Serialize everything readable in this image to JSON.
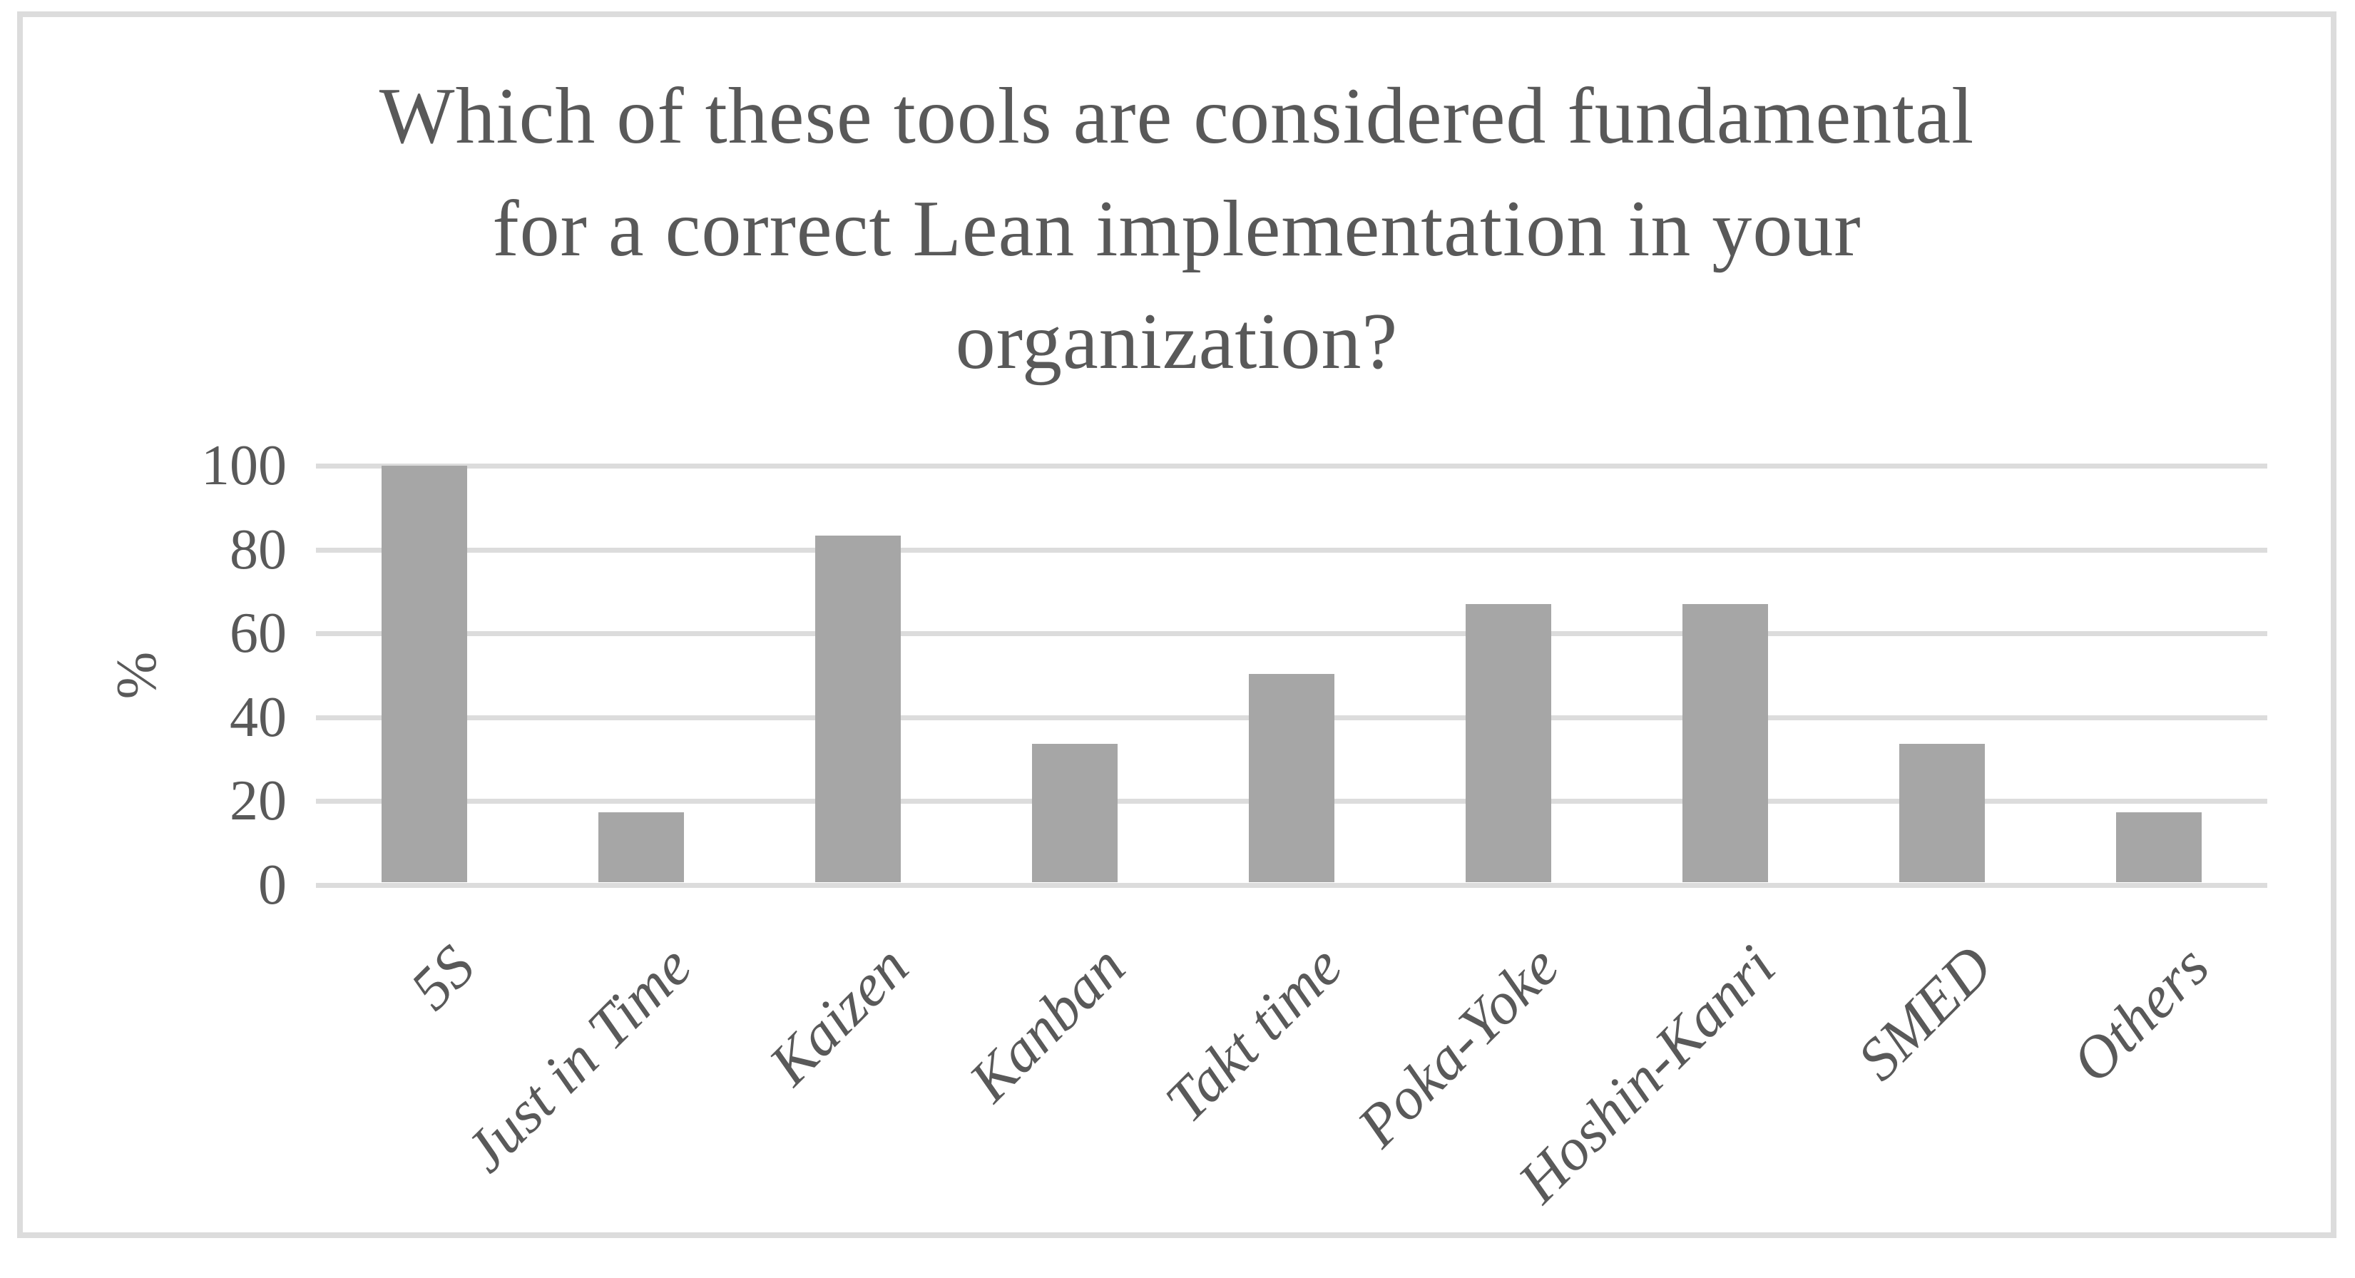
{
  "chart_data": {
    "type": "bar",
    "title": "Which of these tools are considered fundamental for a correct Lean implementation in your organization?",
    "title_lines": [
      "Which of these tools are considered fundamental",
      "for a correct Lean implementation in your",
      "organization?"
    ],
    "categories": [
      "5S",
      "Just in Time",
      "Kaizen",
      "Kanban",
      "Takt time",
      "Poka-Yoke",
      "Hoshin-Kanri",
      "SMED",
      "Others"
    ],
    "values": [
      100,
      16.7,
      83.3,
      33.3,
      50,
      66.7,
      66.7,
      33.3,
      16.7
    ],
    "xlabel": "",
    "ylabel": "%",
    "ylim": [
      0,
      100
    ],
    "yticks": [
      0,
      20,
      40,
      60,
      80,
      100
    ],
    "grid": true,
    "legend": false,
    "bar_color": "#a6a6a6",
    "gridline_color": "#dcdcdc",
    "text_color": "#595959",
    "frame_color": "#dcdcdc"
  }
}
